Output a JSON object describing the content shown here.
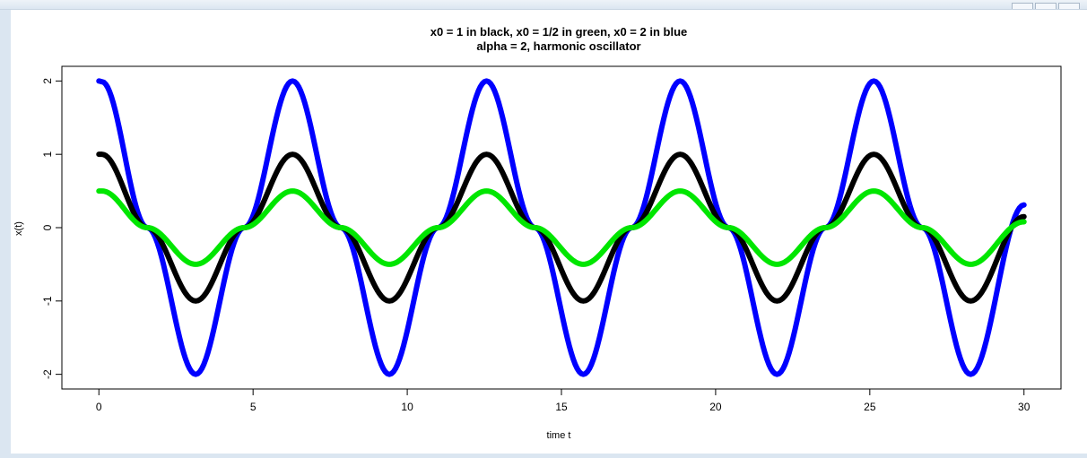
{
  "chart_data": {
    "type": "line",
    "title_lines": [
      "x0 = 1 in black,   x0 = 1/2 in green,   x0 = 2 in blue",
      "alpha = 2,  harmonic oscillator"
    ],
    "xlabel": "time t",
    "ylabel": "x(t)",
    "xlim": [
      -1.2,
      31.2
    ],
    "ylim": [
      -2.2,
      2.2
    ],
    "x_ticks": [
      0,
      5,
      10,
      15,
      20,
      25,
      30
    ],
    "x_tick_labels": [
      "0",
      "5",
      "10",
      "15",
      "20",
      "25",
      "30"
    ],
    "y_ticks": [
      -2,
      -1,
      0,
      1,
      2
    ],
    "y_tick_labels": [
      "-2",
      "-1",
      "0",
      "1",
      "2"
    ],
    "grid": false,
    "legend": "none",
    "series": [
      {
        "x0": 2,
        "color": "#0000ff",
        "x": [
          0,
          0.1,
          1.57,
          3.14,
          4.71,
          6.28,
          7.85,
          9.42,
          11.0,
          12.57,
          14.14,
          15.71,
          17.28,
          18.85,
          20.42,
          21.99,
          23.56,
          25.13,
          26.7,
          28.27,
          30.0
        ],
        "y": [
          2.0,
          1.99,
          0.0,
          -2.0,
          0.0,
          2.0,
          0.0,
          -2.0,
          0.0,
          2.0,
          0.0,
          -2.0,
          0.0,
          2.0,
          0.0,
          -2.0,
          0.0,
          2.0,
          0.0,
          -2.0,
          0.31
        ]
      },
      {
        "x0": 1,
        "color": "#000000",
        "x": [
          0,
          0.1,
          1.57,
          3.14,
          4.71,
          6.28,
          7.85,
          9.42,
          11.0,
          12.57,
          14.14,
          15.71,
          17.28,
          18.85,
          20.42,
          21.99,
          23.56,
          25.13,
          26.7,
          28.27,
          30.0
        ],
        "y": [
          1.0,
          1.0,
          0.0,
          -1.0,
          0.0,
          1.0,
          0.0,
          -1.0,
          0.0,
          1.0,
          0.0,
          -1.0,
          0.0,
          1.0,
          0.0,
          -1.0,
          0.0,
          1.0,
          0.0,
          -1.0,
          0.15
        ]
      },
      {
        "x0": 0.5,
        "color": "#00e600",
        "x": [
          0,
          0.1,
          1.57,
          3.14,
          4.71,
          6.28,
          7.85,
          9.42,
          11.0,
          12.57,
          14.14,
          15.71,
          17.28,
          18.85,
          20.42,
          21.99,
          23.56,
          25.13,
          26.7,
          28.27,
          30.0
        ],
        "y": [
          0.5,
          0.5,
          0.0,
          -0.5,
          0.0,
          0.5,
          0.0,
          -0.5,
          0.0,
          0.5,
          0.0,
          -0.5,
          0.0,
          0.5,
          0.0,
          -0.5,
          0.0,
          0.5,
          0.0,
          -0.5,
          0.08
        ]
      }
    ]
  }
}
